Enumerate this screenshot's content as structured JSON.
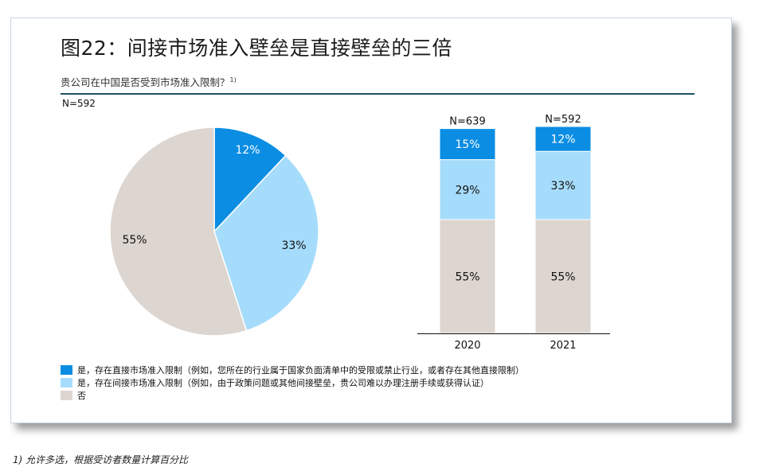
{
  "title": "图22：间接市场准入壁垒是直接壁垒的三倍",
  "subtitle": "贵公司在中国是否受到市场准入限制？",
  "subtitle_note": "1)",
  "colors": {
    "direct": "#0a8de3",
    "indirect": "#a6dcfb",
    "no": "#ddd5cf",
    "rule": "#1f4f66"
  },
  "chart_data": [
    {
      "type": "pie",
      "n_label": "N=592",
      "labels": [
        "是，存在直接市场准入限制",
        "是，存在间接市场准入限制",
        "否"
      ],
      "values": [
        12,
        33,
        55
      ],
      "value_labels": [
        "12%",
        "33%",
        "55%"
      ]
    },
    {
      "type": "bar",
      "stacked": true,
      "categories": [
        "2020",
        "2021"
      ],
      "n_labels": [
        "N=639",
        "N=592"
      ],
      "series": [
        {
          "name": "否",
          "values": [
            55,
            55
          ],
          "labels": [
            "55%",
            "55%"
          ]
        },
        {
          "name": "是，存在间接市场准入限制",
          "values": [
            29,
            33
          ],
          "labels": [
            "29%",
            "33%"
          ]
        },
        {
          "name": "是，存在直接市场准入限制",
          "values": [
            15,
            12
          ],
          "labels": [
            "15%",
            "12%"
          ]
        }
      ]
    }
  ],
  "legend": [
    {
      "key": "direct",
      "label": "是，存在直接市场准入限制（例如，您所在的行业属于国家负面清单中的受限或禁止行业，或者存在其他直接限制）"
    },
    {
      "key": "indirect",
      "label": "是，存在间接市场准入限制（例如，由于政策问题或其他间接壁垒，贵公司难以办理注册手续或获得认证）"
    },
    {
      "key": "no",
      "label": "否"
    }
  ],
  "footnote": "1) 允许多选，根据受访者数量计算百分比"
}
